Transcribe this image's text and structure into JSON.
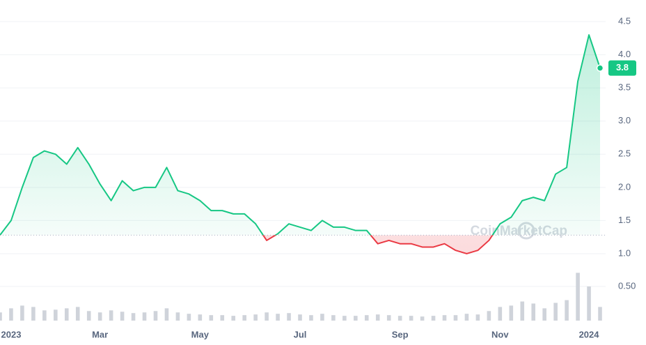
{
  "chart_data": {
    "type": "line",
    "watermark": "CoinMarketCap",
    "categories": [
      null,
      "2023",
      null,
      null,
      null,
      null,
      null,
      null,
      null,
      "Mar",
      null,
      null,
      null,
      null,
      null,
      null,
      null,
      null,
      "May",
      null,
      null,
      null,
      null,
      null,
      null,
      null,
      null,
      "Jul",
      null,
      null,
      null,
      null,
      null,
      null,
      null,
      null,
      "Sep",
      null,
      null,
      null,
      null,
      null,
      null,
      null,
      null,
      "Nov",
      null,
      null,
      null,
      null,
      null,
      null,
      null,
      "2024",
      null
    ],
    "series": [
      {
        "color": "#16c784",
        "down_color": "#ea3943",
        "values": [
          1.28,
          1.5,
          2.0,
          2.45,
          2.55,
          2.5,
          2.35,
          2.6,
          2.35,
          2.05,
          1.8,
          2.1,
          1.95,
          2.0,
          2.0,
          2.3,
          1.95,
          1.9,
          1.8,
          1.65,
          1.65,
          1.6,
          1.6,
          1.45,
          1.2,
          1.3,
          1.45,
          1.4,
          1.35,
          1.5,
          1.4,
          1.4,
          1.35,
          1.35,
          1.15,
          1.2,
          1.15,
          1.15,
          1.1,
          1.1,
          1.15,
          1.05,
          1.0,
          1.05,
          1.2,
          1.45,
          1.55,
          1.8,
          1.85,
          1.8,
          2.2,
          2.3,
          3.6,
          4.3,
          3.8
        ]
      },
      {
        "axis": "y2",
        "color": "#cfd3da",
        "values": [
          0.12,
          0.18,
          0.22,
          0.2,
          0.15,
          0.16,
          0.18,
          0.2,
          0.14,
          0.12,
          0.15,
          0.13,
          0.11,
          0.12,
          0.14,
          0.18,
          0.12,
          0.1,
          0.09,
          0.08,
          0.08,
          0.07,
          0.08,
          0.09,
          0.12,
          0.1,
          0.11,
          0.09,
          0.08,
          0.1,
          0.08,
          0.07,
          0.07,
          0.08,
          0.09,
          0.08,
          0.07,
          0.07,
          0.06,
          0.07,
          0.08,
          0.08,
          0.1,
          0.09,
          0.14,
          0.2,
          0.22,
          0.28,
          0.25,
          0.18,
          0.26,
          0.3,
          0.7,
          0.5,
          0.2
        ]
      }
    ],
    "ylim": [
      0.7,
      4.8
    ],
    "yticks": [
      {
        "value": 1.0,
        "label": "1.0"
      },
      1.5,
      {
        "value": 2.0,
        "label": "2.0"
      },
      2.5,
      {
        "value": 3.0,
        "label": "3.0"
      },
      3.5,
      {
        "value": 4.0,
        "label": "4.0"
      },
      4.5
    ],
    "y2lim": [
      0,
      0.7
    ],
    "y2ticks": [
      {
        "value": 0.5,
        "label": "0.50"
      }
    ],
    "grid": true
  }
}
